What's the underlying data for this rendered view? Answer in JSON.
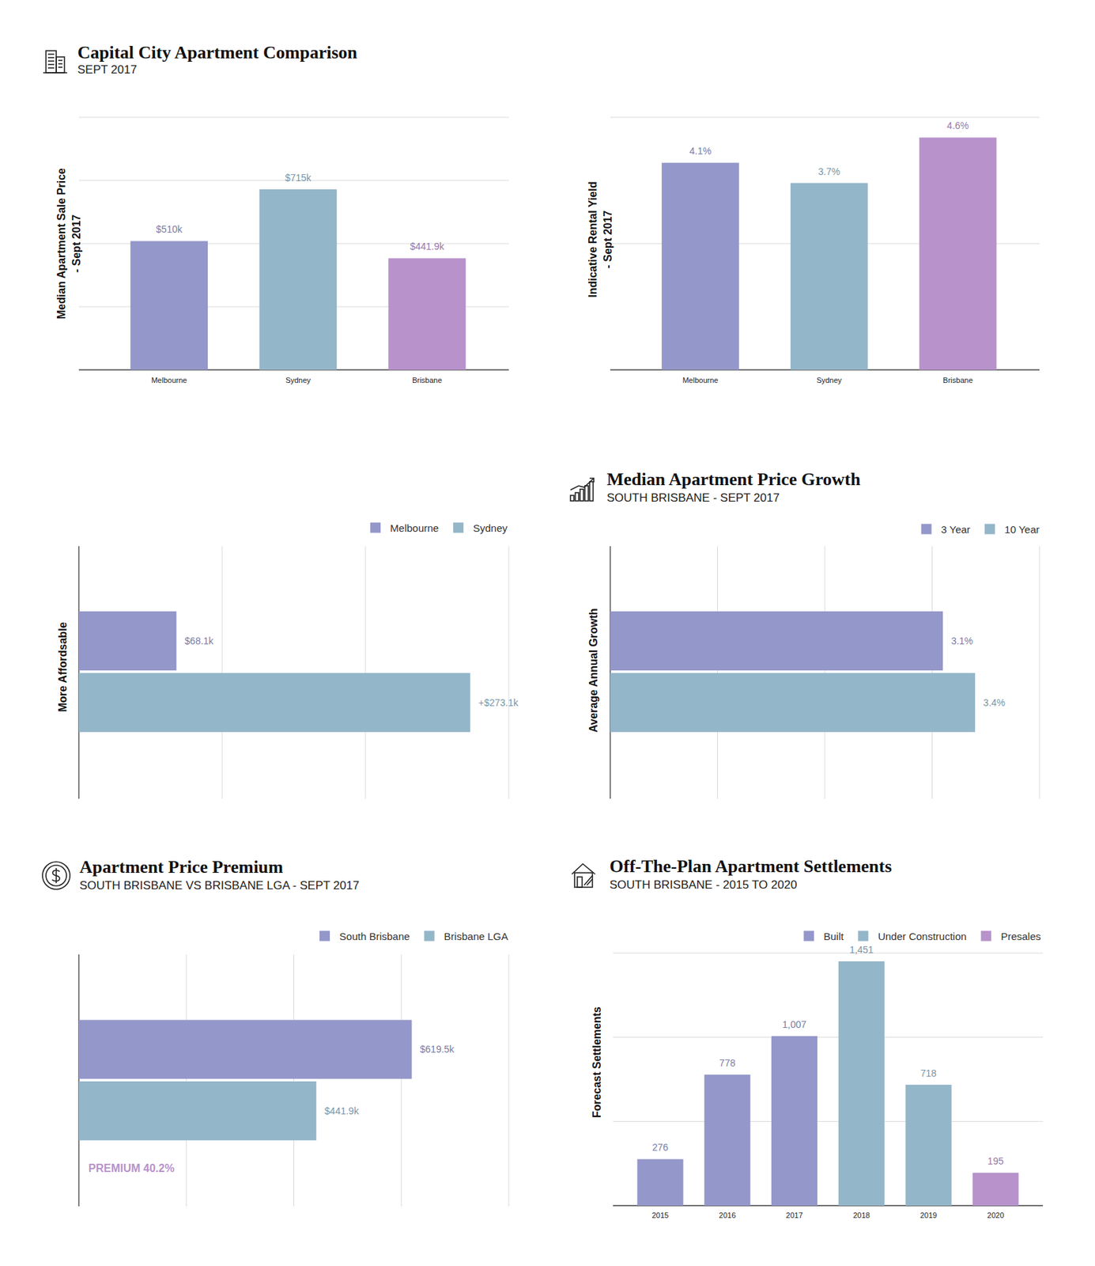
{
  "chart_data": [
    {
      "type": "bar",
      "title": "Capital City Apartment Comparison",
      "subtitle": "SEPT 2017",
      "y_label": "Median Apartment Sale Price - Sept 2017",
      "categories": [
        "Melbourne",
        "Sydney",
        "Brisbane"
      ],
      "values": [
        510000,
        715000,
        441900
      ],
      "value_labels": [
        "$510k",
        "$715k",
        "$441.9k"
      ],
      "colors": [
        "#9497c9",
        "#94b6c9",
        "#b792cb"
      ],
      "ylim": [
        0,
        1000000
      ],
      "yticks": [
        0,
        250000,
        500000,
        750000,
        1000000
      ],
      "grid": true,
      "data_labels": true,
      "tick_labels": "x"
    },
    {
      "type": "bar",
      "y_label": "Indicative Rental Yield - Sept 2017",
      "categories": [
        "Melbourne",
        "Sydney",
        "Brisbane"
      ],
      "values": [
        4.1,
        3.7,
        4.6
      ],
      "value_labels": [
        "4.1%",
        "3.7%",
        "4.6%"
      ],
      "colors": [
        "#9497c9",
        "#94b6c9",
        "#b792cb"
      ],
      "ylim": [
        0,
        5
      ],
      "yticks": [
        0,
        2.5,
        5
      ],
      "grid": true,
      "data_labels": true,
      "tick_labels": "x"
    },
    {
      "type": "bar",
      "orientation": "horizontal",
      "y_label": "More Affordsable",
      "categories": [
        null
      ],
      "series": [
        {
          "name": "Melbourne",
          "color": "#9497c9",
          "values": [
            68100
          ],
          "value_labels": [
            "$68.1k"
          ]
        },
        {
          "name": "Sydney",
          "color": "#94b6c9",
          "values": [
            273100
          ],
          "value_labels": [
            "+$273.1k"
          ]
        }
      ],
      "xlim": [
        0,
        300000
      ],
      "xticks": [
        0,
        100000,
        200000,
        300000
      ],
      "grid": true,
      "data_labels": true,
      "tick_labels": false,
      "legend": "top-right"
    },
    {
      "type": "bar",
      "orientation": "horizontal",
      "title": "Median Apartment Price Growth",
      "subtitle": "SOUTH BRISBANE - SEPT 2017",
      "y_label": "Average Annual Growth",
      "categories": [
        null
      ],
      "series": [
        {
          "name": "3 Year",
          "color": "#9497c9",
          "values": [
            3.1
          ],
          "value_labels": [
            "3.1%"
          ]
        },
        {
          "name": "10 Year",
          "color": "#94b6c9",
          "values": [
            3.4
          ],
          "value_labels": [
            "3.4%"
          ]
        }
      ],
      "xlim": [
        0,
        4
      ],
      "xticks": [
        0,
        1,
        2,
        3,
        4
      ],
      "grid": true,
      "data_labels": true,
      "tick_labels": false,
      "legend": "top-right"
    },
    {
      "type": "bar",
      "orientation": "horizontal",
      "title": "Apartment Price Premium",
      "subtitle": "SOUTH BRISBANE VS BRISBANE LGA - SEPT 2017",
      "categories": [
        null
      ],
      "series": [
        {
          "name": "South Brisbane",
          "color": "#9497c9",
          "values": [
            619500
          ],
          "value_labels": [
            "$619.5k"
          ]
        },
        {
          "name": "Brisbane LGA",
          "color": "#94b6c9",
          "values": [
            441900
          ],
          "value_labels": [
            "$441.9k"
          ]
        }
      ],
      "xlim": [
        0,
        800000
      ],
      "xticks": [
        0,
        200000,
        400000,
        600000,
        800000
      ],
      "annotation": "PREMIUM 40.2%",
      "grid": true,
      "data_labels": true,
      "tick_labels": false,
      "legend": "top-right"
    },
    {
      "type": "bar",
      "stacked": true,
      "title": "Off-The-Plan Apartment Settlements",
      "subtitle": "SOUTH BRISBANE - 2015 TO 2020",
      "y_label": "Forecast Settlements",
      "categories": [
        "2015",
        "2016",
        "2017",
        "2018",
        "2019",
        "2020"
      ],
      "series": [
        {
          "name": "Built",
          "color": "#9497c9",
          "values": [
            276,
            778,
            1007,
            null,
            null,
            null
          ],
          "value_labels": [
            "276",
            "778",
            "1,007",
            null,
            null,
            null
          ]
        },
        {
          "name": "Under Construction",
          "color": "#94b6c9",
          "values": [
            null,
            null,
            null,
            1451,
            718,
            null
          ],
          "value_labels": [
            null,
            null,
            null,
            "1,451",
            "718",
            null
          ]
        },
        {
          "name": "Presales",
          "color": "#b792cb",
          "values": [
            null,
            null,
            null,
            null,
            null,
            195
          ],
          "value_labels": [
            null,
            null,
            null,
            null,
            null,
            "195"
          ]
        }
      ],
      "ylim": [
        0,
        1500
      ],
      "yticks": [
        0,
        500,
        1000,
        1500
      ],
      "grid": true,
      "data_labels": true,
      "tick_labels": "x",
      "legend": "top-right"
    }
  ]
}
